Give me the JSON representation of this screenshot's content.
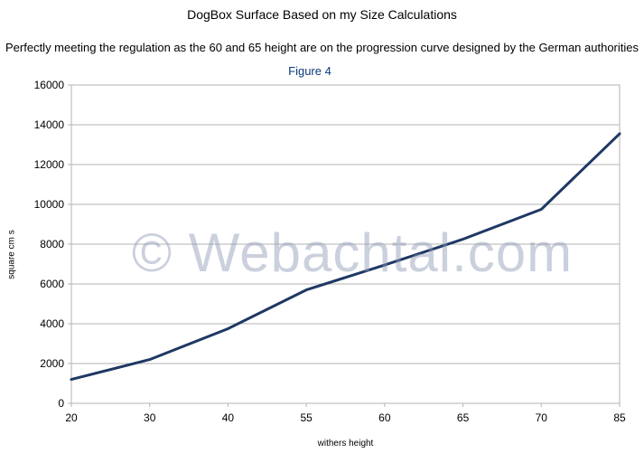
{
  "chart_data": {
    "type": "line",
    "title": "DogBox Surface Based on my Size Calculations",
    "subtitle": "Perfectly meeting the regulation as the 60 and 65 height are on the progression curve designed by the German authorities",
    "figure_label": "Figure 4",
    "xlabel": "withers height",
    "ylabel": "square cm s",
    "watermark": "© Webachtal.com",
    "categories": [
      "20",
      "30",
      "40",
      "55",
      "60",
      "65",
      "70",
      "85"
    ],
    "series": [
      {
        "values": [
          1200,
          2200,
          3750,
          5700,
          6950,
          8250,
          9750,
          13550
        ],
        "color": "#1f3864"
      }
    ],
    "ylim": [
      0,
      16000
    ],
    "yticks": [
      0,
      2000,
      4000,
      6000,
      8000,
      10000,
      12000,
      14000,
      16000
    ],
    "grid": true,
    "legend": "none"
  }
}
